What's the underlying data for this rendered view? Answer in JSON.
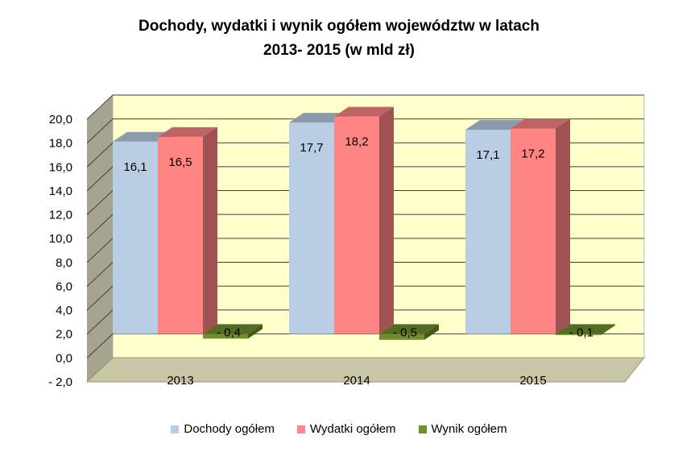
{
  "chart_data": {
    "type": "bar",
    "title_line1": "Dochody,  wydatki i wynik ogółem województw w latach",
    "title_line2": "2013- 2015 (w mld zł)",
    "categories": [
      "2013",
      "2014",
      "2015"
    ],
    "series": [
      {
        "name": "Dochody ogółem",
        "values": [
          16.1,
          17.7,
          17.1
        ],
        "labels": [
          "16,1",
          "17,7",
          "17,1"
        ],
        "color": "#b9cde5"
      },
      {
        "name": "Wydatki  ogółem",
        "values": [
          16.5,
          18.2,
          17.2
        ],
        "labels": [
          "16,5",
          "18,2",
          "17,2"
        ],
        "color": "#ff8585"
      },
      {
        "name": "Wynik ogółem",
        "values": [
          -0.4,
          -0.5,
          -0.1
        ],
        "labels": [
          "- 0,4",
          "- 0,5",
          "- 0,1"
        ],
        "color": "#6f8f2f"
      }
    ],
    "yticks": [
      "20,0",
      "18,0",
      "16,0",
      "14,0",
      "12,0",
      "10,0",
      "8,0",
      "6,0",
      "4,0",
      "2,0",
      "0,0",
      "- 2,0"
    ],
    "ylim": [
      -2,
      20
    ],
    "grid": true,
    "legend_position": "bottom",
    "colors": {
      "wall": "#ffffcc",
      "side_wall": "#a6a48f",
      "floor": "#c9c6a6",
      "gridline": "#404040"
    }
  }
}
